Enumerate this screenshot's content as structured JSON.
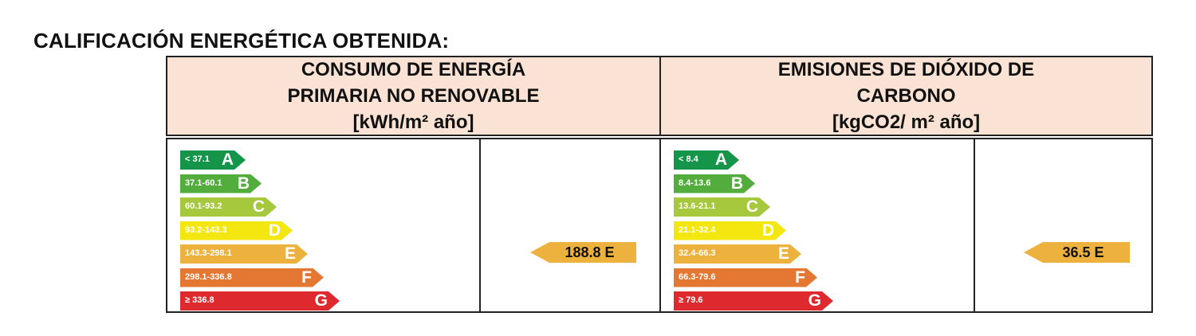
{
  "title": "CALIFICACIÓN ENERGÉTICA OBTENIDA:",
  "colors": {
    "A": "#14954a",
    "B": "#53ad3d",
    "C": "#a5c83c",
    "D": "#f4e70f",
    "E": "#edb23e",
    "F": "#e47833",
    "G": "#de2a2f",
    "header_bg": "#fae3d4"
  },
  "energy": {
    "header": [
      "CONSUMO DE ENERGÍA",
      "PRIMARIA NO RENOVABLE",
      "[kWh/m² año]"
    ],
    "scale": [
      {
        "letter": "A",
        "range": "< 37.1"
      },
      {
        "letter": "B",
        "range": "37.1-60.1"
      },
      {
        "letter": "C",
        "range": "60.1-93.2"
      },
      {
        "letter": "D",
        "range": "93.2-143.3"
      },
      {
        "letter": "E",
        "range": "143.3-298.1"
      },
      {
        "letter": "F",
        "range": "298.1-336.8"
      },
      {
        "letter": "G",
        "range": "≥ 336.8"
      }
    ],
    "result": {
      "value": "188.8",
      "letter": "E"
    }
  },
  "emissions": {
    "header": [
      "EMISIONES DE DIÓXIDO DE",
      "CARBONO",
      "[kgCO2/ m² año]"
    ],
    "scale": [
      {
        "letter": "A",
        "range": "< 8.4"
      },
      {
        "letter": "B",
        "range": "8.4-13.6"
      },
      {
        "letter": "C",
        "range": "13.6-21.1"
      },
      {
        "letter": "D",
        "range": "21.1-32.4"
      },
      {
        "letter": "E",
        "range": "32.4-66.3"
      },
      {
        "letter": "F",
        "range": "66.3-79.6"
      },
      {
        "letter": "G",
        "range": "≥ 79.6"
      }
    ],
    "result": {
      "value": "36.5",
      "letter": "E"
    }
  }
}
